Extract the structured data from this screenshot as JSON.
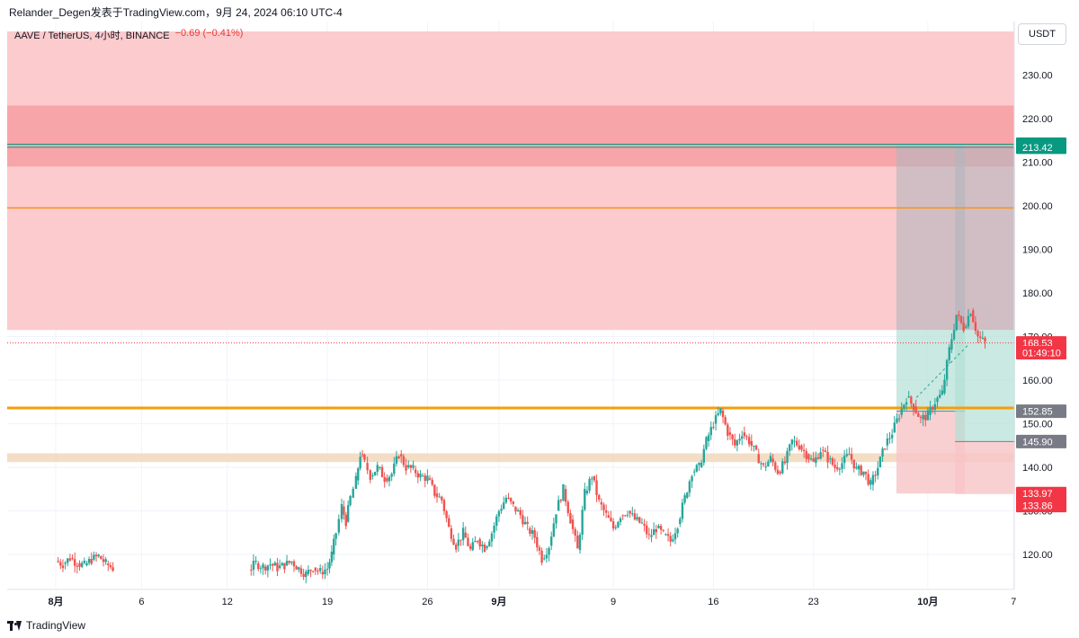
{
  "header": {
    "publisher_line": "Relander_Degen发表于TradingView.com，9月 24, 2024 06:10 UTC-4"
  },
  "legend": {
    "symbol": "AAVE / TetherUS, 4小时, BINANCE",
    "change": "−0.69 (−0.41%)"
  },
  "currency": "USDT",
  "footer": {
    "brand": "TradingView"
  },
  "colors": {
    "up": "#26a69a",
    "down": "#ef5350",
    "zone": "#fccbcd",
    "zone_strong": "#f8a5aa",
    "orange": "#f7931a",
    "grid": "#f0f3fa"
  },
  "chart_data": {
    "type": "candlestick",
    "title": "AAVE / TetherUS, 4小时, BINANCE",
    "ylim": [
      110,
      240
    ],
    "y_ticks": [
      "120.00",
      "130.00",
      "140.00",
      "150.00",
      "160.00",
      "170.00",
      "180.00",
      "190.00",
      "200.00",
      "210.00",
      "220.00",
      "230.00"
    ],
    "x_ticks": [
      {
        "label": "8月",
        "day": 0,
        "bold": true
      },
      {
        "label": "6",
        "day": 6,
        "bold": false
      },
      {
        "label": "12",
        "day": 12,
        "bold": false
      },
      {
        "label": "19",
        "day": 19,
        "bold": false
      },
      {
        "label": "26",
        "day": 26,
        "bold": false
      },
      {
        "label": "9月",
        "day": 31,
        "bold": true
      },
      {
        "label": "9",
        "day": 39,
        "bold": false
      },
      {
        "label": "16",
        "day": 46,
        "bold": false
      },
      {
        "label": "23",
        "day": 53,
        "bold": false
      },
      {
        "label": "10月",
        "day": 61,
        "bold": true
      },
      {
        "label": "7",
        "day": 67,
        "bold": false
      }
    ],
    "close_path": [
      [
        0.0,
        118.5
      ],
      [
        0.5,
        117.8
      ],
      [
        1.0,
        119.2
      ],
      [
        1.5,
        118.0
      ],
      [
        2.0,
        117.5
      ],
      [
        2.5,
        118.8
      ],
      [
        3.0,
        119.6
      ],
      [
        3.5,
        117.9
      ],
      [
        4.0,
        116.8
      ],
      [
        13.5,
        116.5
      ],
      [
        14.0,
        118.0
      ],
      [
        14.5,
        117.2
      ],
      [
        15.0,
        117.8
      ],
      [
        15.5,
        116.9
      ],
      [
        16.0,
        117.5
      ],
      [
        16.5,
        118.4
      ],
      [
        17.0,
        116.8
      ],
      [
        17.5,
        115.5
      ],
      [
        18.0,
        117.0
      ],
      [
        18.5,
        116.0
      ],
      [
        19.0,
        116.8
      ],
      [
        19.3,
        120.0
      ],
      [
        19.6,
        125.0
      ],
      [
        20.0,
        131.0
      ],
      [
        20.3,
        127.5
      ],
      [
        20.6,
        133.0
      ],
      [
        21.0,
        137.0
      ],
      [
        21.3,
        143.0
      ],
      [
        21.6,
        141.0
      ],
      [
        22.0,
        138.0
      ],
      [
        22.5,
        140.0
      ],
      [
        23.0,
        137.5
      ],
      [
        23.5,
        138.5
      ],
      [
        24.0,
        143.0
      ],
      [
        24.5,
        140.0
      ],
      [
        25.0,
        139.5
      ],
      [
        25.5,
        138.0
      ],
      [
        26.0,
        137.5
      ],
      [
        26.5,
        134.0
      ],
      [
        27.0,
        132.5
      ],
      [
        27.5,
        126.0
      ],
      [
        28.0,
        122.0
      ],
      [
        28.5,
        125.0
      ],
      [
        29.0,
        121.0
      ],
      [
        29.5,
        123.5
      ],
      [
        30.0,
        121.5
      ],
      [
        30.5,
        125.0
      ],
      [
        31.0,
        130.0
      ],
      [
        31.5,
        133.0
      ],
      [
        32.0,
        131.0
      ],
      [
        32.5,
        129.0
      ],
      [
        33.0,
        126.0
      ],
      [
        33.5,
        124.0
      ],
      [
        34.0,
        119.0
      ],
      [
        34.5,
        122.0
      ],
      [
        35.0,
        130.0
      ],
      [
        35.5,
        135.0
      ],
      [
        36.0,
        128.0
      ],
      [
        36.5,
        121.0
      ],
      [
        37.0,
        134.0
      ],
      [
        37.5,
        138.0
      ],
      [
        38.0,
        132.0
      ],
      [
        38.5,
        129.0
      ],
      [
        39.0,
        126.0
      ],
      [
        39.5,
        129.0
      ],
      [
        40.0,
        130.0
      ],
      [
        40.5,
        128.0
      ],
      [
        41.0,
        127.0
      ],
      [
        41.5,
        124.0
      ],
      [
        42.0,
        126.0
      ],
      [
        42.5,
        124.5
      ],
      [
        43.0,
        123.0
      ],
      [
        43.5,
        127.0
      ],
      [
        44.0,
        133.0
      ],
      [
        44.5,
        139.0
      ],
      [
        45.0,
        140.0
      ],
      [
        45.5,
        146.0
      ],
      [
        46.0,
        150.0
      ],
      [
        46.5,
        153.0
      ],
      [
        47.0,
        148.0
      ],
      [
        47.5,
        145.0
      ],
      [
        48.0,
        148.0
      ],
      [
        48.5,
        146.0
      ],
      [
        49.0,
        143.0
      ],
      [
        49.5,
        140.0
      ],
      [
        50.0,
        142.0
      ],
      [
        50.5,
        139.0
      ],
      [
        51.0,
        141.0
      ],
      [
        51.5,
        146.0
      ],
      [
        52.0,
        145.0
      ],
      [
        52.5,
        143.0
      ],
      [
        53.0,
        141.0
      ],
      [
        53.5,
        144.0
      ],
      [
        54.0,
        142.0
      ],
      [
        54.5,
        140.0
      ],
      [
        55.0,
        141.0
      ],
      [
        55.5,
        143.0
      ],
      [
        56.0,
        139.5
      ],
      [
        56.5,
        139.0
      ],
      [
        57.0,
        136.0
      ],
      [
        57.5,
        140.0
      ],
      [
        58.0,
        145.0
      ],
      [
        58.5,
        148.0
      ],
      [
        59.0,
        152.0
      ],
      [
        59.5,
        156.0
      ],
      [
        60.0,
        154.0
      ],
      [
        60.5,
        151.0
      ],
      [
        61.0,
        152.0
      ],
      [
        61.5,
        155.0
      ],
      [
        62.0,
        157.0
      ],
      [
        62.5,
        167.0
      ],
      [
        63.0,
        175.0
      ],
      [
        63.5,
        172.0
      ],
      [
        64.0,
        176.0
      ],
      [
        64.5,
        170.0
      ],
      [
        65.0,
        168.5
      ]
    ],
    "zones": [
      {
        "name": "supply-zone",
        "from": 171.5,
        "to": 240,
        "color": "#fccbcd"
      },
      {
        "name": "strong-supply-zone",
        "from": 209,
        "to": 223,
        "color": "#f8a5aa"
      },
      {
        "name": "demand-zone",
        "from": 141.2,
        "to": 143.2,
        "color": "#f2d9bf"
      }
    ],
    "hlines": [
      {
        "name": "resistance-line-200",
        "value": 199.5,
        "color": "#f7931a",
        "width": 1.5
      },
      {
        "name": "key-level-line",
        "value": 153.6,
        "color": "#f59d0b",
        "width": 3
      },
      {
        "name": "target-line-214",
        "value": 214.13,
        "color": "#089981",
        "width": 1
      },
      {
        "name": "target-line-213",
        "value": 213.42,
        "color": "#089981",
        "width": 1
      }
    ],
    "positions": [
      {
        "name": "long-position-1",
        "entry": 152.85,
        "target": 214.13,
        "stop": 133.97,
        "start_day": 58.8,
        "end_day": 63.6
      },
      {
        "name": "long-position-2",
        "entry": 145.9,
        "target": 213.42,
        "stop": 133.86,
        "start_day": 62.9,
        "end_day": 67.1
      }
    ],
    "price_labels": [
      {
        "value": "214.13",
        "price": 214.13,
        "color": "#089981"
      },
      {
        "value": "213.42",
        "price": 213.42,
        "color": "#089981"
      },
      {
        "value": "168.53",
        "price": 168.53,
        "color": "#f23645"
      },
      {
        "value": "01:49:10",
        "price": 166.3,
        "color": "#f23645"
      },
      {
        "value": "152.85",
        "price": 152.85,
        "color": "#787b86"
      },
      {
        "value": "145.90",
        "price": 145.9,
        "color": "#787b86"
      },
      {
        "value": "133.97",
        "price": 133.97,
        "color": "#f23645"
      },
      {
        "value": "133.86",
        "price": 131.2,
        "color": "#f23645"
      }
    ],
    "last_price": 168.53
  }
}
